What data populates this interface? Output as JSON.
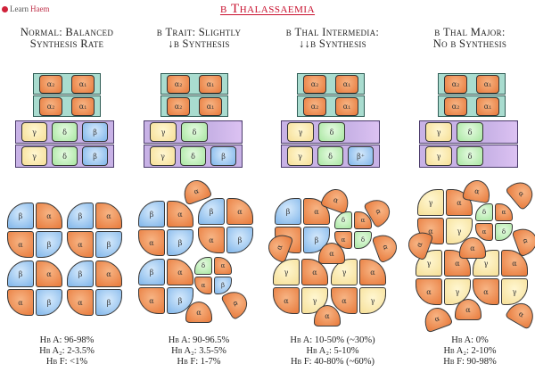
{
  "logo": {
    "learn": "Learn",
    "haem": "Haem"
  },
  "title": "β Thalassaemia",
  "colors": {
    "alpha": "#e8793a",
    "beta": "#7fb5ea",
    "gamma": "#f6df96",
    "delta": "#a8e6a0",
    "alpha_band": "#a9dccf",
    "non_alpha_band": "#c8b2e6",
    "title": "#c8102e"
  },
  "panels": [
    {
      "heading": [
        "Normal: Balanced",
        "Synthesis Rate"
      ],
      "alpha_rows": [
        [
          "α₂",
          "α₁"
        ],
        [
          "α₂",
          "α₁"
        ]
      ],
      "other_rows": [
        [
          "γ",
          "δ",
          "β"
        ],
        [
          "γ",
          "δ",
          "β"
        ]
      ],
      "tetramers": [
        [
          "β",
          "α",
          "α",
          "β"
        ],
        [
          "β",
          "α",
          "α",
          "β"
        ],
        [
          "β",
          "α",
          "α",
          "β"
        ],
        [
          "β",
          "α",
          "α",
          "β"
        ]
      ],
      "free_chains": [],
      "stats": [
        "Hb A: 96-98%",
        "Hb A₂: 2-3.5%",
        "Hb F: <1%"
      ]
    },
    {
      "heading": [
        "β Trait: Slightly",
        "↓β Synthesis"
      ],
      "alpha_rows": [
        [
          "α₂",
          "α₁"
        ],
        [
          "α₂",
          "α₁"
        ]
      ],
      "other_rows": [
        [
          "γ",
          "δ",
          ""
        ],
        [
          "γ",
          "δ",
          "β"
        ]
      ],
      "tetramers": [
        [
          "β",
          "α",
          "α",
          "β"
        ],
        [
          "β",
          "α",
          "α",
          "β"
        ],
        [
          "β",
          "α",
          "α",
          "β"
        ],
        [
          "δ",
          "α",
          "α",
          "β"
        ]
      ],
      "free_chains": [
        "α",
        "α",
        "α"
      ],
      "stats": [
        "Hb A: 90-96.5%",
        "Hb A₂: 3.5-5%",
        "Hb F: 1-7%"
      ]
    },
    {
      "heading": [
        "β Thal Intermedia:",
        "↓↓β Synthesis"
      ],
      "alpha_rows": [
        [
          "α₂",
          "α₁"
        ],
        [
          "α₂",
          "α₁"
        ]
      ],
      "other_rows": [
        [
          "γ",
          "δ",
          ""
        ],
        [
          "γ",
          "δ",
          "β⁺"
        ]
      ],
      "tetramers": [
        [
          "β",
          "α",
          "α",
          "β"
        ],
        [
          "δ",
          "α",
          "α",
          "δ"
        ],
        [
          "γ",
          "α",
          "α",
          "γ"
        ],
        [
          "γ",
          "α",
          "α",
          "γ"
        ]
      ],
      "free_chains": [
        "α",
        "α",
        "α",
        "α",
        "α",
        "α"
      ],
      "stats": [
        "Hb A: 10-50% (~30%)",
        "Hb A₂: 5-10%",
        "Hb F: 40-80% (~60%)"
      ]
    },
    {
      "heading": [
        "β Thal Major:",
        "No β Synthesis"
      ],
      "alpha_rows": [
        [
          "α₂",
          "α₁"
        ],
        [
          "α₂",
          "α₁"
        ]
      ],
      "other_rows": [
        [
          "γ",
          "δ",
          ""
        ],
        [
          "γ",
          "δ",
          ""
        ]
      ],
      "tetramers": [
        [
          "γ",
          "α",
          "α",
          "γ"
        ],
        [
          "δ",
          "α",
          "α",
          "δ"
        ],
        [
          "γ",
          "α",
          "α",
          "γ"
        ],
        [
          "γ",
          "α",
          "α",
          "γ"
        ]
      ],
      "free_chains": [
        "α",
        "α",
        "α",
        "α",
        "α",
        "α",
        "α",
        "α"
      ],
      "stats": [
        "Hb A: 0%",
        "Hb A₂: 2-10%",
        "Hb F: 90-98%"
      ]
    }
  ]
}
